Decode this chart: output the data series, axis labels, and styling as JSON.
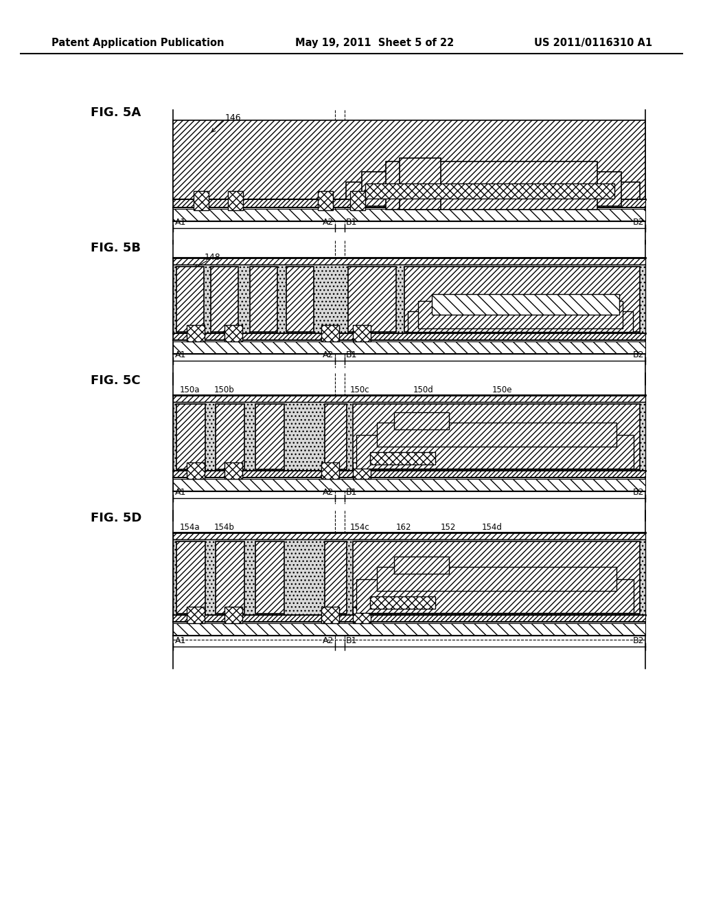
{
  "title_left": "Patent Application Publication",
  "title_mid": "May 19, 2011  Sheet 5 of 22",
  "title_right": "US 2011/0116310 A1",
  "background_color": "#ffffff",
  "fig_labels": [
    "FIG. 5A",
    "FIG. 5B",
    "FIG. 5C",
    "FIG. 5D"
  ],
  "line_color": "#000000"
}
